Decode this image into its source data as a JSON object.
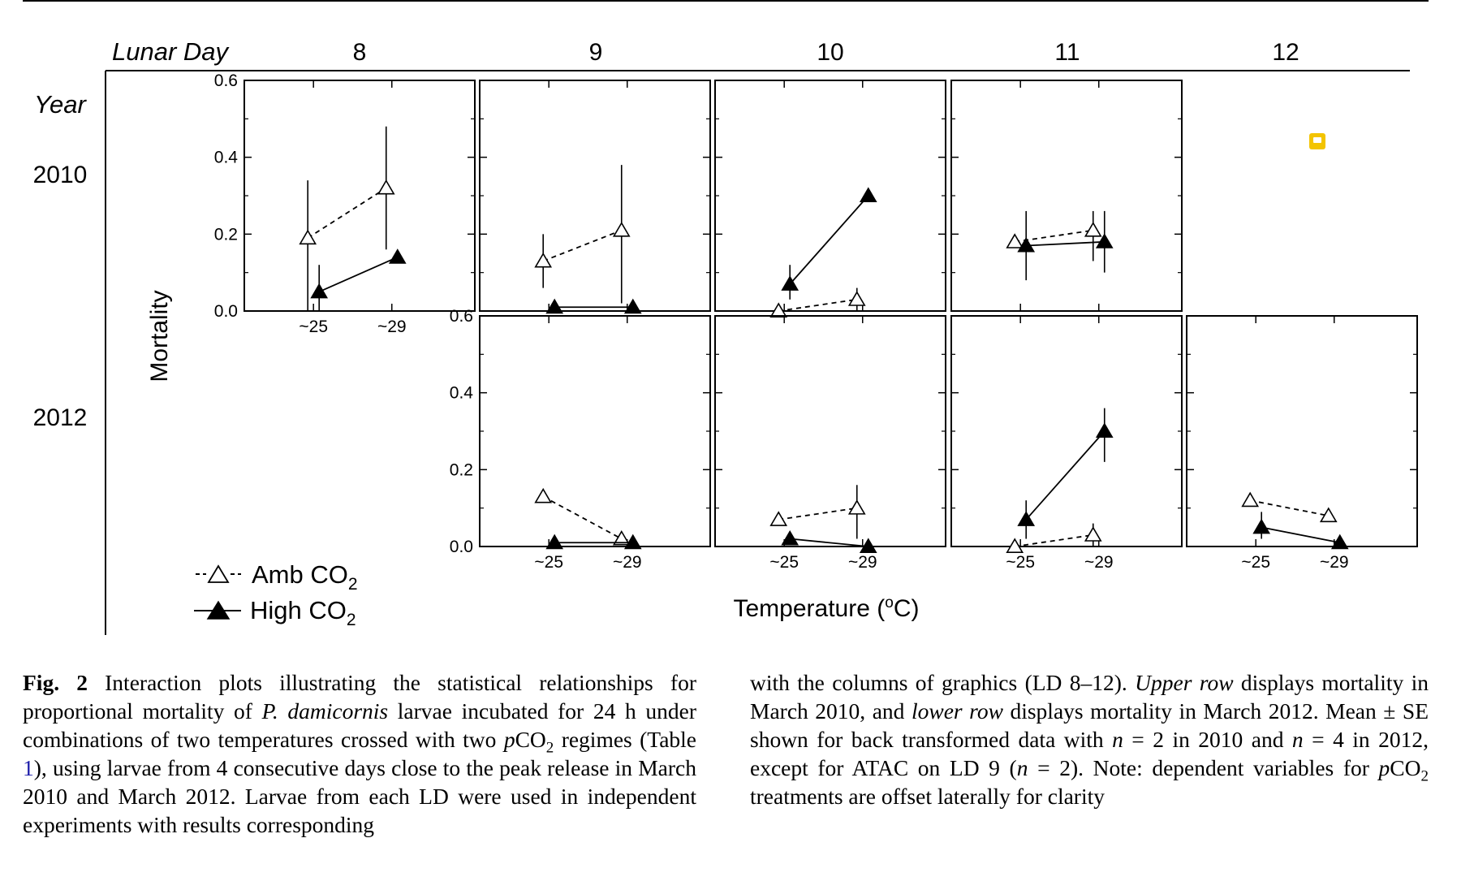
{
  "figure": {
    "lunar_day_label": "Lunar Day",
    "year_label": "Year",
    "column_labels": [
      "8",
      "9",
      "10",
      "11",
      "12"
    ],
    "row_labels": [
      "2010",
      "2012"
    ],
    "ylabel": "Mortality",
    "xlabel_text": "Temperature (",
    "xlabel_sup": "o",
    "xlabel_end": "C)",
    "y_tick_labels": [
      "0.6",
      "0.4",
      "0.2",
      "0.0"
    ],
    "x_tick_labels": [
      "~25",
      "~29"
    ],
    "legend": {
      "amb_prefix": "Amb CO",
      "amb_sub": "2",
      "high_prefix": "High CO",
      "high_sub": "2"
    }
  },
  "chart_data": {
    "type": "line",
    "ylim": [
      0,
      0.6
    ],
    "x": [
      "~25",
      "~29"
    ],
    "series_styles": {
      "amb": {
        "marker": "open-triangle",
        "line": "dashed",
        "color": "#000000"
      },
      "high": {
        "marker": "filled-triangle",
        "line": "solid",
        "color": "#000000"
      }
    },
    "panels": [
      {
        "year": "2010",
        "lunar_day": "8",
        "amb": [
          0.19,
          0.32
        ],
        "amb_se": [
          [
            0.0,
            0.34
          ],
          [
            0.16,
            0.48
          ]
        ],
        "high": [
          0.05,
          0.14
        ],
        "high_se": [
          [
            0.0,
            0.12
          ],
          null
        ]
      },
      {
        "year": "2010",
        "lunar_day": "9",
        "amb": [
          0.13,
          0.21
        ],
        "amb_se": [
          [
            0.06,
            0.2
          ],
          [
            0.02,
            0.38
          ]
        ],
        "high": [
          0.01,
          0.01
        ],
        "high_se": [
          null,
          null
        ]
      },
      {
        "year": "2010",
        "lunar_day": "10",
        "amb": [
          0.0,
          0.03
        ],
        "amb_se": [
          null,
          [
            0.0,
            0.06
          ]
        ],
        "high": [
          0.07,
          0.3
        ],
        "high_se": [
          [
            0.03,
            0.12
          ],
          null
        ]
      },
      {
        "year": "2010",
        "lunar_day": "11",
        "amb": [
          0.18,
          0.21
        ],
        "amb_se": [
          null,
          [
            0.13,
            0.26
          ]
        ],
        "high": [
          0.17,
          0.18
        ],
        "high_se": [
          [
            0.08,
            0.26
          ],
          [
            0.1,
            0.26
          ]
        ]
      },
      {
        "year": "2012",
        "lunar_day": "9",
        "amb": [
          0.13,
          0.02
        ],
        "amb_se": [
          null,
          null
        ],
        "high": [
          0.01,
          0.01
        ],
        "high_se": [
          null,
          null
        ]
      },
      {
        "year": "2012",
        "lunar_day": "10",
        "amb": [
          0.07,
          0.1
        ],
        "amb_se": [
          null,
          [
            0.02,
            0.16
          ]
        ],
        "high": [
          0.02,
          0.0
        ],
        "high_se": [
          null,
          null
        ]
      },
      {
        "year": "2012",
        "lunar_day": "11",
        "amb": [
          0.0,
          0.03
        ],
        "amb_se": [
          null,
          [
            0.0,
            0.06
          ]
        ],
        "high": [
          0.07,
          0.3
        ],
        "high_se": [
          [
            0.02,
            0.12
          ],
          [
            0.22,
            0.36
          ]
        ]
      },
      {
        "year": "2012",
        "lunar_day": "12",
        "amb": [
          0.12,
          0.08
        ],
        "amb_se": [
          null,
          null
        ],
        "high": [
          0.05,
          0.01
        ],
        "high_se": [
          [
            0.02,
            0.09
          ],
          null
        ]
      }
    ]
  },
  "caption": {
    "fig_label": "Fig. 2",
    "left_1": " Interaction plots illustrating the statistical relationships for proportional mortality of ",
    "species": "P. damicornis",
    "left_2": " larvae incubated for 24 h under combinations of two temperatures crossed with two ",
    "pco2_p": "p",
    "pco2_co": "CO",
    "pco2_sub": "2",
    "left_3": " regimes (Table ",
    "table_ref": "1",
    "left_4": "), using larvae from 4 consecutive days close to the peak release in March 2010 and March 2012. Larvae from each LD were used in independent experiments with results corresponding",
    "right_1": "with the columns of graphics (LD 8–12). ",
    "upper_row": "Upper row",
    "right_2": " displays mortality in March 2010, and ",
    "lower_row": "lower row",
    "right_3": " displays mortality in March 2012. Mean ± SE shown for back transformed data with ",
    "n1": "n",
    "right_4": " = 2 in 2010 and ",
    "n2": "n",
    "right_5": " = 4 in 2012, except for ATAC on LD 9 (",
    "n3": "n",
    "right_6": " = 2). Note: dependent variables for ",
    "pco2b_p": "p",
    "pco2b_co": "CO",
    "pco2b_sub": "2",
    "right_7": " treatments are offset laterally for clarity"
  }
}
